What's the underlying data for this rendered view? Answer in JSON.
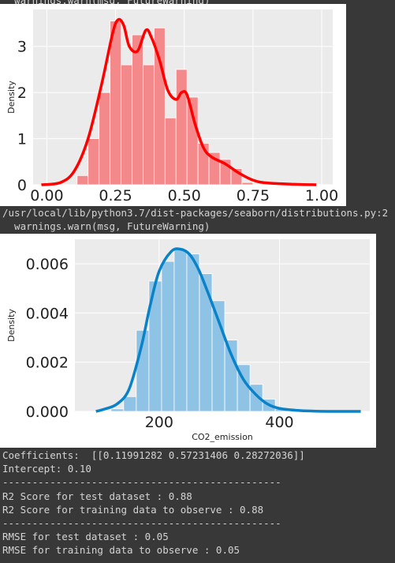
{
  "output": {
    "top_cut_line": "  warnings.warn(msg, FutureWarning)",
    "warn_path": "/usr/local/lib/python3.7/dist-packages/seaborn/distributions.py:2",
    "warn_msg": "  warnings.warn(msg, FutureWarning)",
    "coefficients": "Coefficients:  [[0.11991282 0.57231406 0.28272036]]",
    "intercept": "Intercept: 0.10",
    "sep1": "-----------------------------------------------",
    "r2_test": "R2 Score for test dataset : 0.88",
    "r2_train": "R2 Score for training data to observe : 0.88",
    "sep2": "-----------------------------------------------",
    "rmse_test": "RMSE for test dataset : 0.05",
    "rmse_train": "RMSE for training data to observe : 0.05"
  },
  "colors": {
    "red": "#ff0000",
    "red_fill": "#f4898b",
    "blue": "#0a82c8",
    "blue_fill": "#8ec3e6"
  },
  "chart_data": [
    {
      "type": "bar",
      "title": "",
      "xlabel": "",
      "ylabel": "Density",
      "xlim": [
        -0.05,
        1.04
      ],
      "ylim": [
        0,
        3.8
      ],
      "xticks": [
        "0.00",
        "0.25",
        "0.50",
        "0.75",
        "1.00"
      ],
      "yticks": [
        "0",
        "1",
        "2",
        "3"
      ],
      "bins": {
        "start": 0.11,
        "width": 0.04,
        "values": [
          0.2,
          1.0,
          2.0,
          3.55,
          2.6,
          3.25,
          2.6,
          3.4,
          1.45,
          2.5,
          1.9,
          0.9,
          0.7,
          0.55,
          0.35,
          0.05
        ]
      },
      "kde": {
        "x": [
          -0.02,
          0.05,
          0.1,
          0.15,
          0.2,
          0.24,
          0.26,
          0.28,
          0.3,
          0.33,
          0.36,
          0.38,
          0.41,
          0.44,
          0.47,
          0.49,
          0.51,
          0.54,
          0.57,
          0.6,
          0.65,
          0.7,
          0.75,
          0.8,
          0.9,
          0.98
        ],
        "y": [
          0.0,
          0.05,
          0.3,
          1.0,
          2.2,
          3.3,
          3.58,
          3.45,
          3.0,
          2.9,
          3.35,
          3.2,
          2.7,
          2.05,
          1.85,
          2.0,
          1.95,
          1.3,
          0.8,
          0.6,
          0.45,
          0.25,
          0.1,
          0.04,
          0.01,
          0.0
        ]
      }
    },
    {
      "type": "bar",
      "title": "",
      "xlabel": "CO2_emission",
      "ylabel": "Density",
      "xlim": [
        60,
        550
      ],
      "ylim": [
        0,
        0.007
      ],
      "xticks": [
        "200",
        "400"
      ],
      "yticks": [
        "0.000",
        "0.002",
        "0.004",
        "0.006"
      ],
      "bins": {
        "start": 120,
        "width": 21,
        "values": [
          0.0001,
          0.0006,
          0.0033,
          0.0053,
          0.0061,
          0.0066,
          0.0064,
          0.0056,
          0.0045,
          0.0029,
          0.0019,
          0.0011,
          0.0005,
          0.0001
        ]
      },
      "kde": {
        "x": [
          95,
          110,
          130,
          150,
          170,
          185,
          200,
          220,
          235,
          250,
          265,
          280,
          300,
          320,
          340,
          360,
          380,
          400,
          430,
          460,
          500,
          535
        ],
        "y": [
          0.0,
          0.0001,
          0.0003,
          0.0009,
          0.0026,
          0.0043,
          0.0057,
          0.0065,
          0.0066,
          0.0064,
          0.0058,
          0.0049,
          0.0036,
          0.0023,
          0.0013,
          0.0007,
          0.0003,
          0.00012,
          4e-05,
          1e-05,
          0.0,
          0.0
        ]
      }
    }
  ]
}
